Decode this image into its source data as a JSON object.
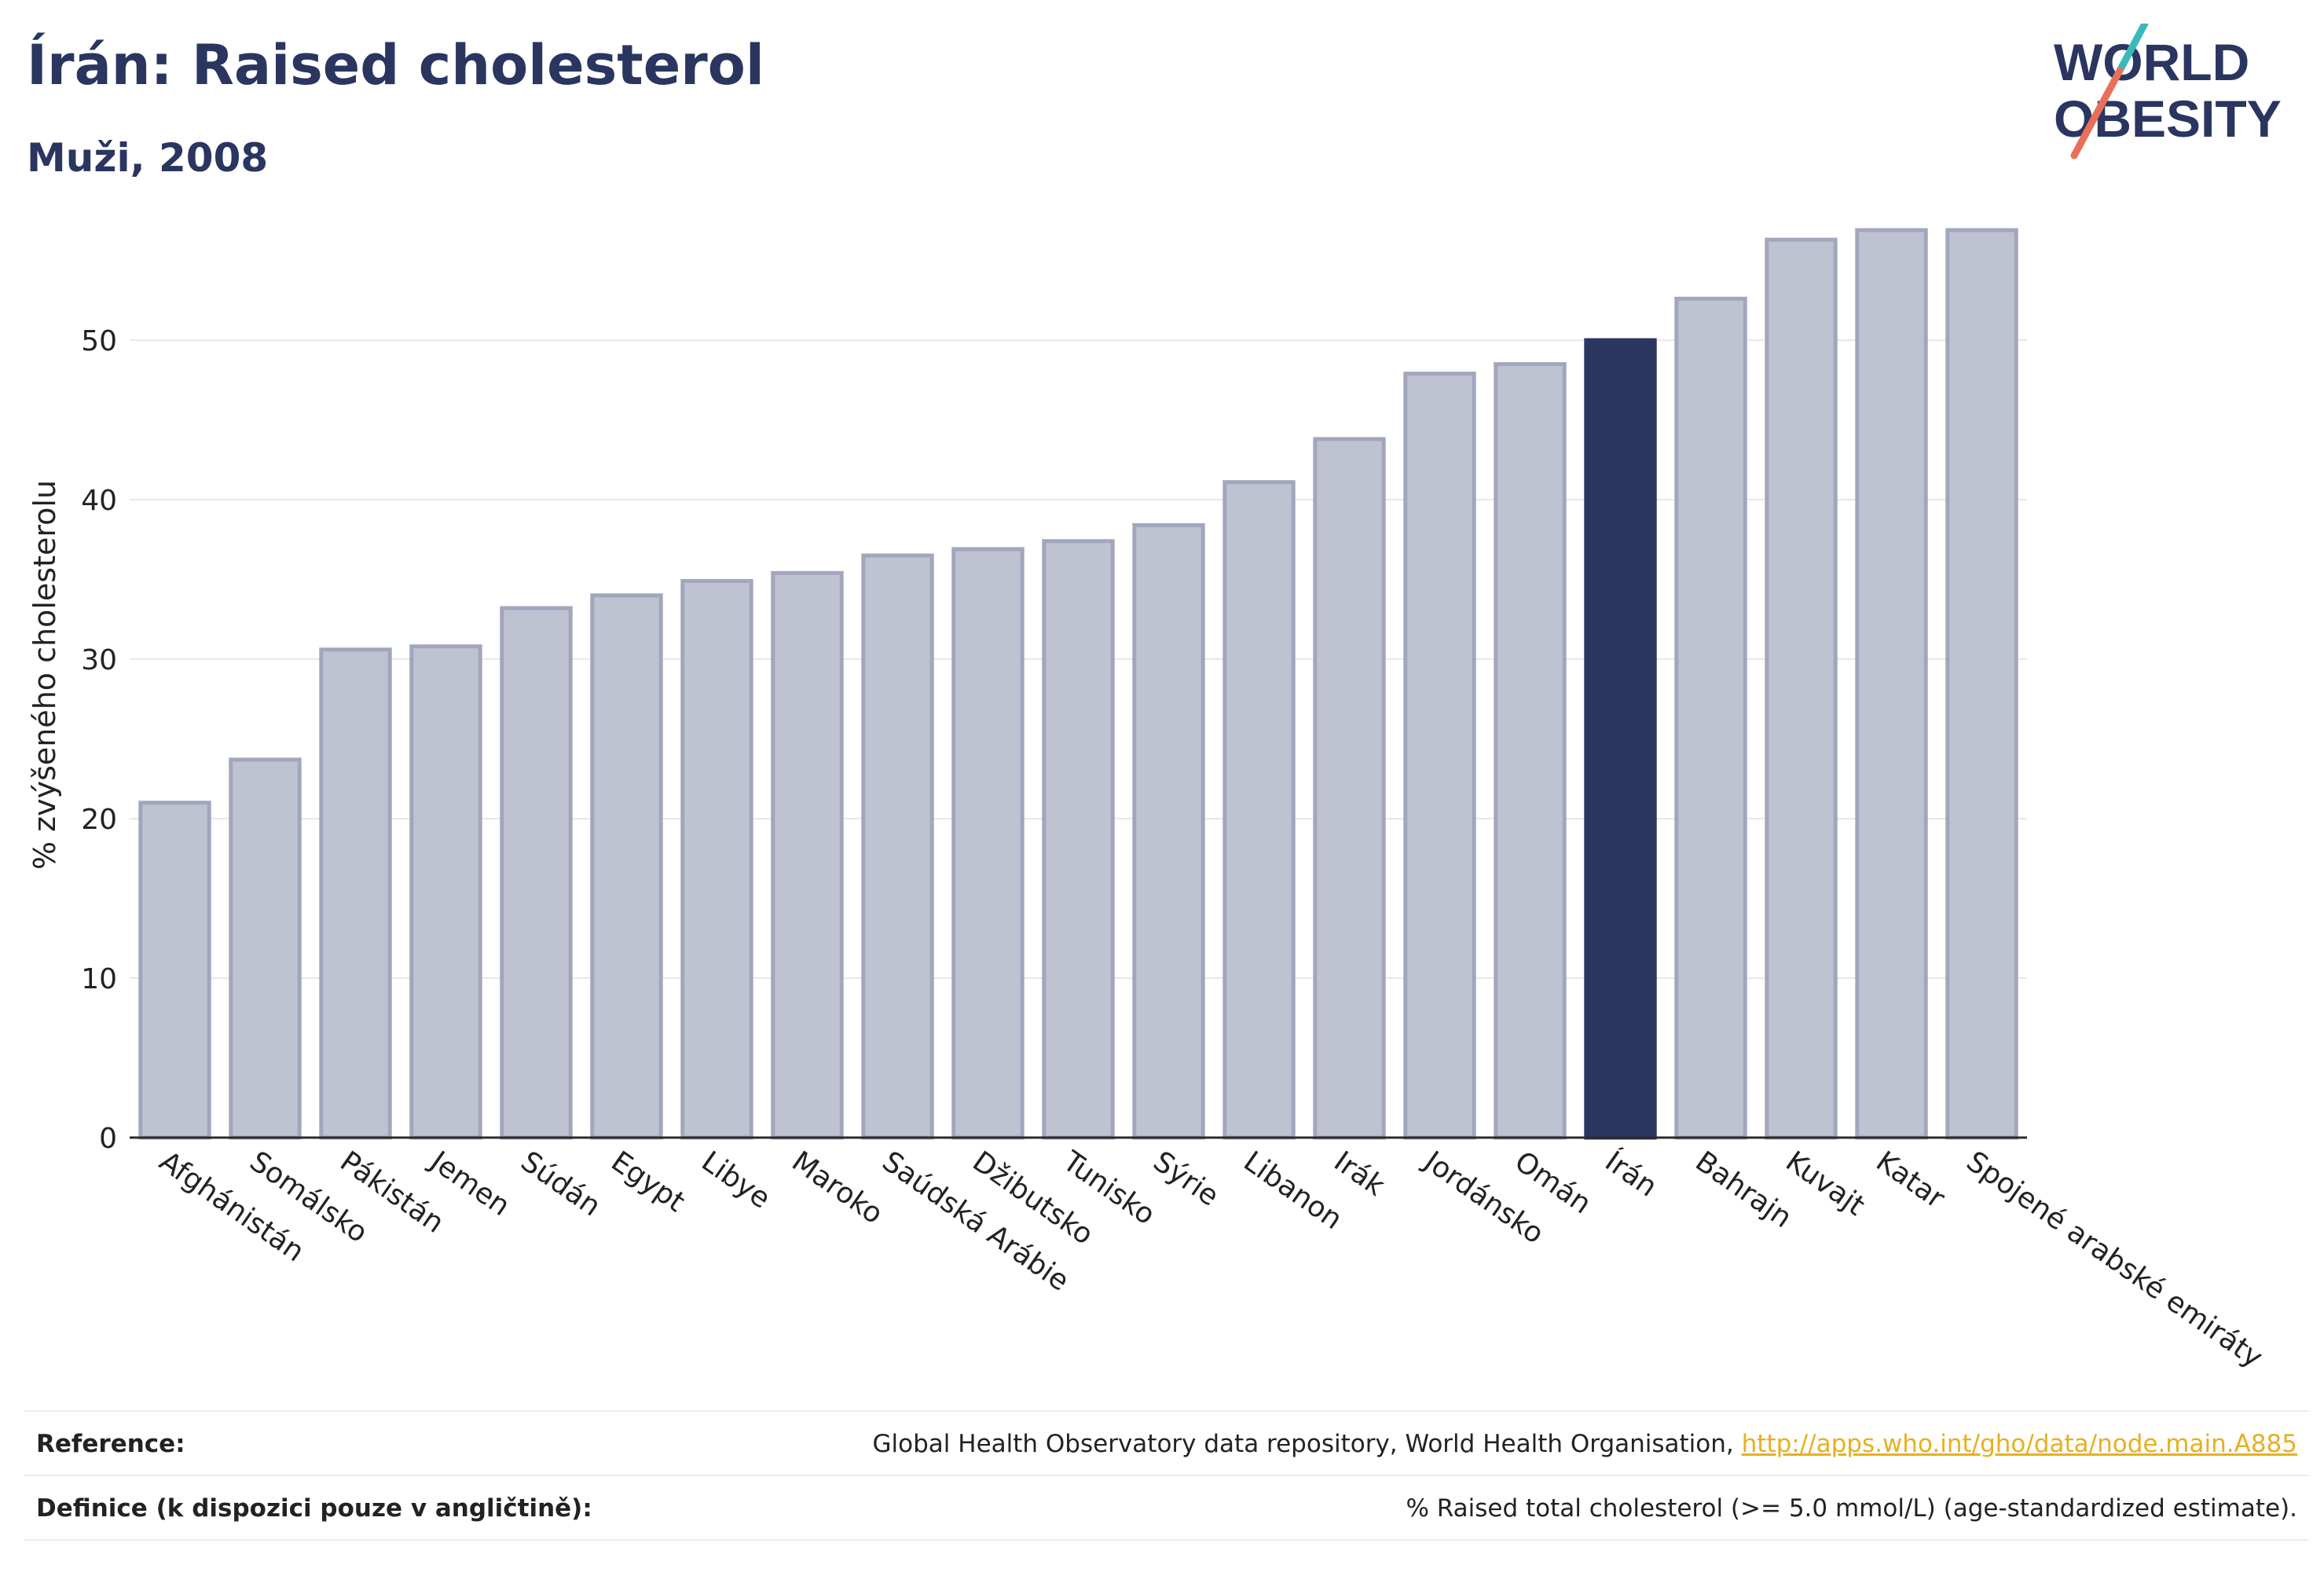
{
  "header": {
    "title": "Írán: Raised cholesterol",
    "subtitle": "Muži, 2008"
  },
  "logo": {
    "line1": "WORLD",
    "line2": "OBESITY",
    "colors": {
      "text": "#2a3560",
      "slash_top": "#3cb8b8",
      "slash_bottom": "#e8705a"
    }
  },
  "chart_data": {
    "type": "bar",
    "ylabel": "% zvýšeného cholesterolu",
    "xlabel": "",
    "ylim": [
      0,
      60
    ],
    "yticks": [
      0,
      10,
      20,
      30,
      40,
      50
    ],
    "grid": true,
    "highlight": "Írán",
    "colors": {
      "bar_fill": "#bfc2d1",
      "bar_stroke": "#a2a6bd",
      "highlight_fill": "#2a3560",
      "grid": "#e8e8e8"
    },
    "categories": [
      "Afghánistán",
      "Somálsko",
      "Pákistán",
      "Jemen",
      "Súdán",
      "Egypt",
      "Libye",
      "Maroko",
      "Saúdská Arábie",
      "Džibutsko",
      "Tunisko",
      "Sýrie",
      "Libanon",
      "Irák",
      "Jordánsko",
      "Omán",
      "Írán",
      "Bahrajn",
      "Kuvajt",
      "Katar",
      "Spojené arabské emiráty"
    ],
    "values": [
      21.0,
      23.7,
      30.6,
      30.8,
      33.2,
      34.0,
      34.9,
      35.4,
      36.5,
      36.9,
      37.4,
      38.4,
      41.1,
      43.8,
      47.9,
      48.5,
      50.0,
      52.6,
      56.3,
      56.9,
      56.9
    ]
  },
  "footer": {
    "reference_label": "Reference:",
    "reference_text": "Global Health Observatory data repository, World Health Organisation, ",
    "reference_link": "http://apps.who.int/gho/data/node.main.A885",
    "definition_label": "Definice (k dispozici pouze v angličtině):",
    "definition_text": "% Raised total cholesterol (>= 5.0 mmol/L) (age-standardized estimate)."
  }
}
